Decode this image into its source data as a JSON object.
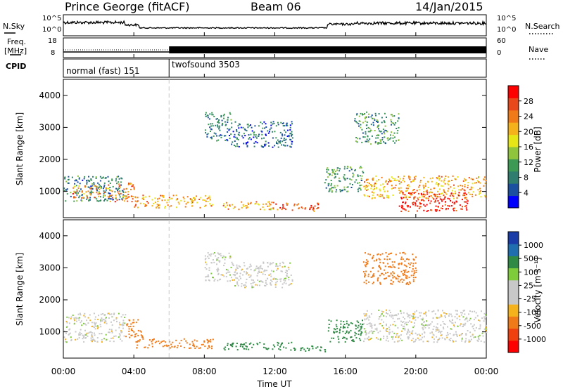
{
  "header": {
    "site": "Prince George (fitACF)",
    "beam": "Beam 06",
    "date": "14/Jan/2015"
  },
  "left_labels": {
    "nsky": "N.Sky",
    "freq": "Freq.",
    "freq_unit": "[MHz]",
    "cpid": "CPID"
  },
  "right_labels": {
    "nsearch": "N.Search",
    "nave": "Nave"
  },
  "nsky_ticks": [
    "10^5",
    "10^0"
  ],
  "nsearch_ticks": [
    "10^5",
    "10^0"
  ],
  "freq_ticks": [
    "18",
    "8"
  ],
  "nave_ticks": [
    "60",
    "0"
  ],
  "cpid_segments": [
    {
      "name": "normal (fast) 151",
      "start": 0,
      "end": 6
    },
    {
      "name": "twofsound 3503",
      "start": 6,
      "end": 24
    }
  ],
  "colors": {
    "power_scale": [
      "#0000ff",
      "#1b4fa0",
      "#2e7d6e",
      "#3c9a55",
      "#8fc43d",
      "#e6e617",
      "#f6b21a",
      "#f07a17",
      "#e8481a",
      "#ff0000"
    ],
    "velocity_scale": [
      "#ff0000",
      "#f04010",
      "#f07a17",
      "#f6b21a",
      "#c8c8c8",
      "#c8c8c8",
      "#7fcc3a",
      "#2e8a45",
      "#1f6fb0",
      "#1a3ca8"
    ]
  },
  "chart_data": [
    {
      "type": "heatmap",
      "name": "power",
      "xlabel": "",
      "ylabel": "Slant Range [km]",
      "xlim": [
        0,
        24
      ],
      "ylim": [
        180,
        4500
      ],
      "x_ticks": [],
      "y_ticks": [
        1000,
        2000,
        3000,
        4000
      ],
      "colorbar": {
        "label": "Power [dB]",
        "ticks": [
          "4",
          "8",
          "12",
          "16",
          "20",
          "24",
          "28"
        ]
      },
      "regions": [
        {
          "t": [
            0.0,
            3.5
          ],
          "r": [
            700,
            1500
          ],
          "level": 8
        },
        {
          "t": [
            0.5,
            2.5
          ],
          "r": [
            800,
            1200
          ],
          "level": 22
        },
        {
          "t": [
            2.5,
            4.0
          ],
          "r": [
            700,
            1300
          ],
          "level": 22
        },
        {
          "t": [
            4.0,
            8.5
          ],
          "r": [
            500,
            900
          ],
          "level": 20
        },
        {
          "t": [
            8.0,
            9.5
          ],
          "r": [
            2600,
            3500
          ],
          "level": 8
        },
        {
          "t": [
            9.5,
            13.0
          ],
          "r": [
            2400,
            3200
          ],
          "level": 6
        },
        {
          "t": [
            9.0,
            12.0
          ],
          "r": [
            450,
            700
          ],
          "level": 20
        },
        {
          "t": [
            12.0,
            14.5
          ],
          "r": [
            400,
            650
          ],
          "level": 24
        },
        {
          "t": [
            14.8,
            17.0
          ],
          "r": [
            1000,
            1800
          ],
          "level": 10
        },
        {
          "t": [
            16.5,
            19.0
          ],
          "r": [
            2500,
            3500
          ],
          "level": 10
        },
        {
          "t": [
            17.0,
            24.0
          ],
          "r": [
            800,
            1500
          ],
          "level": 20
        },
        {
          "t": [
            19.0,
            23.0
          ],
          "r": [
            400,
            1000
          ],
          "level": 28
        }
      ]
    },
    {
      "type": "heatmap",
      "name": "velocity",
      "xlabel": "Time UT",
      "ylabel": "Slant Range [km]",
      "xlim": [
        0,
        24
      ],
      "ylim": [
        180,
        4500
      ],
      "x_ticks": [
        "00:00",
        "04:00",
        "08:00",
        "12:00",
        "16:00",
        "20:00",
        "00:00"
      ],
      "y_ticks": [
        1000,
        2000,
        3000,
        4000
      ],
      "colorbar": {
        "label": "Velocity [m s⁻¹]",
        "ticks": [
          "1000",
          "500",
          "100",
          "25",
          "-25",
          "-100",
          "-500",
          "-1000"
        ]
      },
      "regions": [
        {
          "t": [
            0.0,
            3.5
          ],
          "r": [
            700,
            1600
          ],
          "level": 0
        },
        {
          "t": [
            3.5,
            4.5
          ],
          "r": [
            800,
            1400
          ],
          "level": -300
        },
        {
          "t": [
            4.0,
            8.5
          ],
          "r": [
            500,
            800
          ],
          "level": -150
        },
        {
          "t": [
            8.0,
            9.5
          ],
          "r": [
            2600,
            3500
          ],
          "level": 0
        },
        {
          "t": [
            9.5,
            13.0
          ],
          "r": [
            2400,
            3200
          ],
          "level": 0
        },
        {
          "t": [
            9.0,
            13.0
          ],
          "r": [
            450,
            700
          ],
          "level": 150
        },
        {
          "t": [
            13.0,
            15.0
          ],
          "r": [
            400,
            600
          ],
          "level": 200
        },
        {
          "t": [
            15.0,
            17.0
          ],
          "r": [
            700,
            1400
          ],
          "level": 150
        },
        {
          "t": [
            17.0,
            20.0
          ],
          "r": [
            2500,
            3500
          ],
          "level": -300
        },
        {
          "t": [
            17.0,
            24.0
          ],
          "r": [
            700,
            1700
          ],
          "level": 0
        }
      ]
    }
  ]
}
